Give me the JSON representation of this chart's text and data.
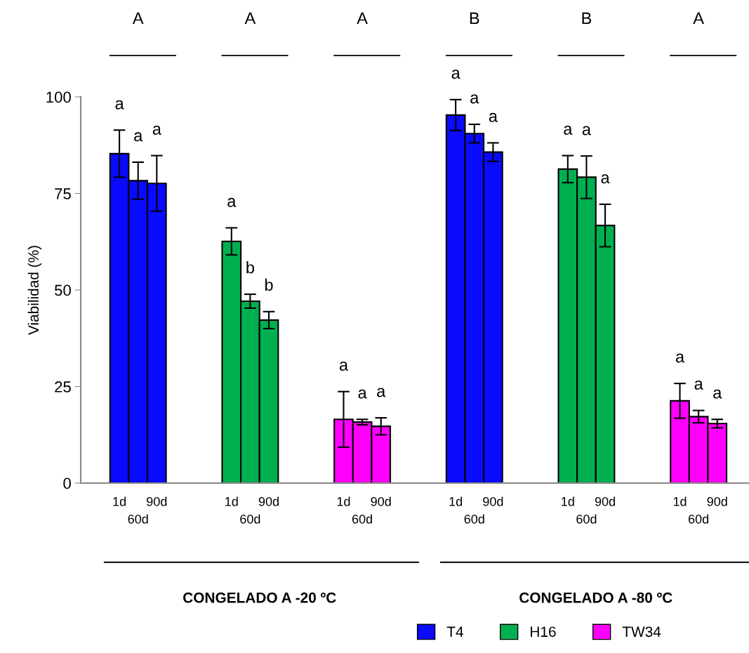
{
  "chart_data": {
    "type": "bar",
    "ylabel": "Viabilidad (%)",
    "categories": [
      "1d",
      "60d",
      "90d",
      null,
      null,
      null,
      "1d",
      "60d",
      "90d",
      null,
      null,
      null,
      "1d",
      "60d",
      "90d",
      null,
      null,
      null,
      "1d",
      "60d",
      "90d",
      null,
      null,
      null,
      "1d",
      "60d",
      "90d",
      null,
      null,
      null,
      "1d",
      "60d",
      "90d"
    ],
    "series": [
      {
        "name": "T4",
        "color": "#0a0aff",
        "values": [
          85.3,
          78.3,
          77.6,
          null,
          null,
          null,
          null,
          null,
          null,
          null,
          null,
          null,
          null,
          null,
          null,
          null,
          null,
          null,
          95.3,
          90.5,
          85.7,
          null,
          null,
          null,
          null,
          null,
          null,
          null,
          null,
          null,
          null,
          null,
          null
        ],
        "errors": [
          6.1,
          4.8,
          7.2,
          null,
          null,
          null,
          null,
          null,
          null,
          null,
          null,
          null,
          null,
          null,
          null,
          null,
          null,
          null,
          4.0,
          2.4,
          2.4,
          null,
          null,
          null,
          null,
          null,
          null,
          null,
          null,
          null,
          null,
          null,
          null
        ]
      },
      {
        "name": "H16",
        "color": "#00b050",
        "values": [
          null,
          null,
          null,
          null,
          null,
          null,
          62.6,
          47.1,
          42.2,
          null,
          null,
          null,
          null,
          null,
          null,
          null,
          null,
          null,
          null,
          null,
          null,
          null,
          null,
          null,
          81.3,
          79.2,
          66.7,
          null,
          null,
          null,
          null,
          null,
          null
        ],
        "errors": [
          null,
          null,
          null,
          null,
          null,
          null,
          3.5,
          1.8,
          2.2,
          null,
          null,
          null,
          null,
          null,
          null,
          null,
          null,
          null,
          null,
          null,
          null,
          null,
          null,
          null,
          3.5,
          5.5,
          5.5,
          null,
          null,
          null,
          null,
          null,
          null
        ]
      },
      {
        "name": "TW34",
        "color": "#ff00ff",
        "values": [
          null,
          null,
          null,
          null,
          null,
          null,
          null,
          null,
          null,
          null,
          null,
          null,
          16.5,
          15.8,
          14.7,
          null,
          null,
          null,
          null,
          null,
          null,
          null,
          null,
          null,
          null,
          null,
          null,
          null,
          null,
          null,
          21.3,
          17.2,
          15.4
        ],
        "errors": [
          null,
          null,
          null,
          null,
          null,
          null,
          null,
          null,
          null,
          null,
          null,
          null,
          7.2,
          0.7,
          2.2,
          null,
          null,
          null,
          null,
          null,
          null,
          null,
          null,
          null,
          null,
          null,
          null,
          null,
          null,
          null,
          4.5,
          1.6,
          1.1
        ]
      }
    ],
    "ylim": [
      0,
      100
    ],
    "yticks": [
      0,
      25,
      50,
      75,
      100
    ],
    "grid": false,
    "legend": "bottom",
    "annotations": [
      "a",
      "a",
      "a",
      "a",
      "b",
      "b",
      "a",
      "a",
      "a",
      "a",
      "a",
      "a",
      "a",
      "a",
      "a",
      "a",
      "a",
      "a",
      "A",
      "A",
      "A",
      "B",
      "B",
      "A",
      "CONGELADO A -20 ºC",
      "CONGELADO A -80 ºC"
    ]
  }
}
